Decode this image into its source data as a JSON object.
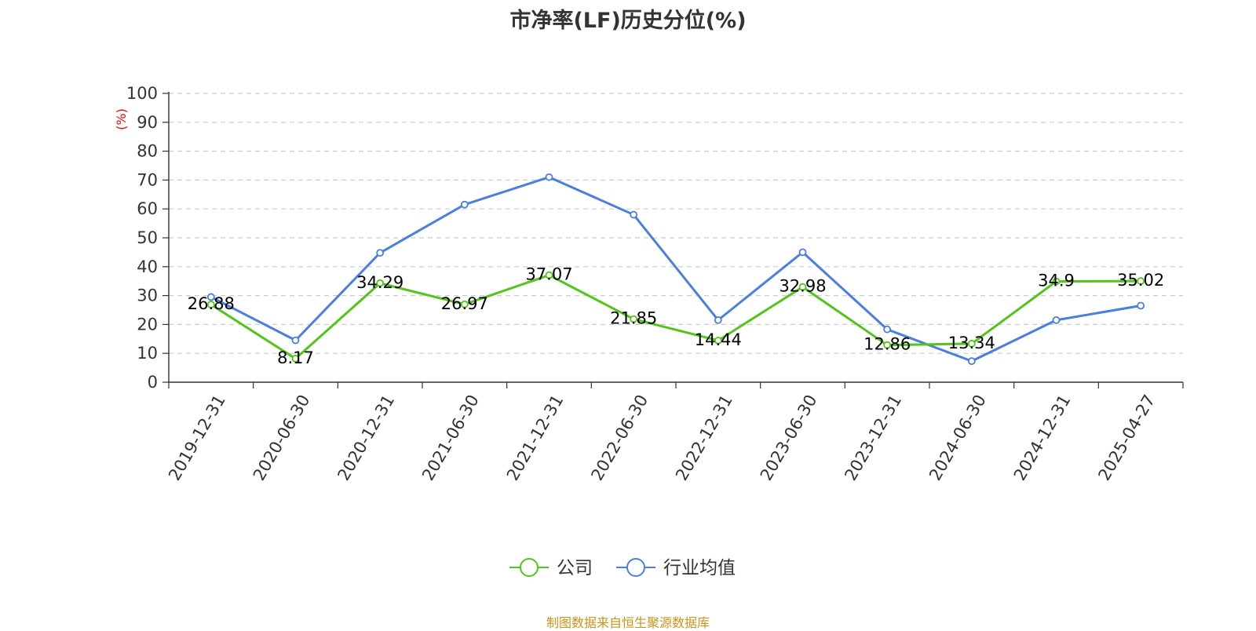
{
  "title": "市净率(LF)历史分位(%)",
  "source": "制图数据来自恒生聚源数据库",
  "chart_data": {
    "type": "line",
    "title": "市净率(LF)历史分位(%)",
    "ylabel": "(%)",
    "ylabel_color": "#ff0000",
    "ylim": [
      0,
      100
    ],
    "yticks": [
      0,
      10,
      20,
      30,
      40,
      50,
      60,
      70,
      80,
      90,
      100
    ],
    "grid": true,
    "legend_position": "bottom-center",
    "categories": [
      "2019-12-31",
      "2020-06-30",
      "2020-12-31",
      "2021-06-30",
      "2021-12-31",
      "2022-06-30",
      "2022-12-31",
      "2023-06-30",
      "2023-12-31",
      "2024-06-30",
      "2024-12-31",
      "2025-04-27"
    ],
    "series": [
      {
        "name": "公司",
        "color": "#52c41a",
        "show_labels": true,
        "values": [
          26.88,
          8.17,
          34.29,
          26.97,
          37.07,
          21.85,
          14.44,
          32.98,
          12.86,
          13.34,
          34.9,
          35.02
        ],
        "labels": [
          "26.88",
          "8.17",
          "34.29",
          "26.97",
          "37.07",
          "21.85",
          "14.44",
          "32.98",
          "12.86",
          "13.34",
          "34.9",
          "35.02"
        ]
      },
      {
        "name": "行业均值",
        "color": "#4a7fe0",
        "show_labels": false,
        "values": [
          29.5,
          14.5,
          44.8,
          61.5,
          71.0,
          58.0,
          21.5,
          45.0,
          18.3,
          7.3,
          21.5,
          26.5
        ]
      }
    ]
  }
}
